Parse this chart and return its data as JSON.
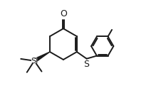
{
  "background": "#ffffff",
  "line_color": "#1a1a1a",
  "line_width": 1.4,
  "fig_width": 2.33,
  "fig_height": 1.38,
  "dpi": 100,
  "xlim": [
    0,
    10
  ],
  "ylim": [
    0,
    6
  ]
}
